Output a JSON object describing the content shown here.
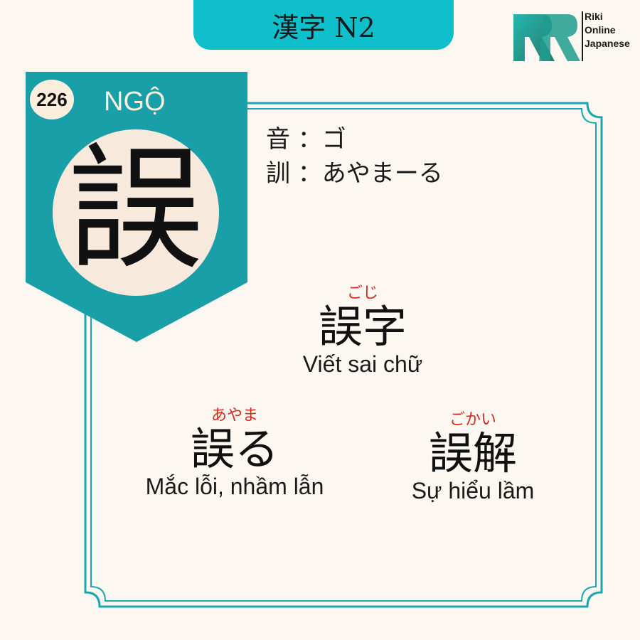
{
  "header": {
    "title": "漢字 N2"
  },
  "logo": {
    "line1": "Riki",
    "line2": "Online",
    "line3": "Japanese"
  },
  "kanji": {
    "number": "226",
    "han_viet": "NGỘ",
    "character": "誤",
    "on_label": "音 ：ゴ",
    "kun_label": "訓 ：あやまーる"
  },
  "words": [
    {
      "furigana": "ごじ",
      "word": "誤字",
      "meaning": "Viết sai chữ"
    },
    {
      "furigana": "あやま",
      "word": "誤る",
      "meaning": "Mắc lỗi, nhầm lẫn"
    },
    {
      "furigana": "ごかい",
      "word": "誤解",
      "meaning": "Sự hiểu lầm"
    }
  ],
  "colors": {
    "accent": "#0fc0cc",
    "banner": "#189fa8",
    "furigana": "#d32a22",
    "background": "#fcf8f1"
  }
}
